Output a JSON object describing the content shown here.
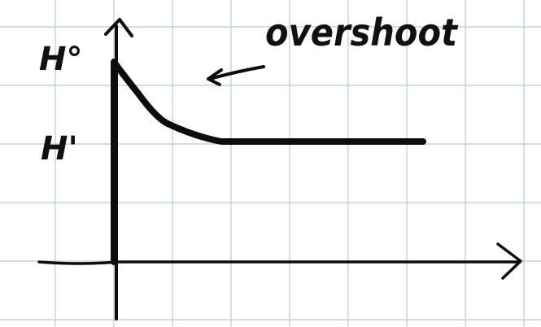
{
  "labels": {
    "h_zero": "H°",
    "h_one": "H'",
    "annotation": "overshoot"
  },
  "colors": {
    "paper": "#ffffff",
    "grid": "#b8c8de",
    "ink": "#0d0d0d"
  },
  "curve": {
    "description_points_data_units": [
      [
        0,
        1.0
      ],
      [
        0.25,
        0.62
      ],
      [
        0.5,
        0.45
      ],
      [
        1.0,
        0.42
      ],
      [
        2.5,
        0.42
      ]
    ]
  }
}
